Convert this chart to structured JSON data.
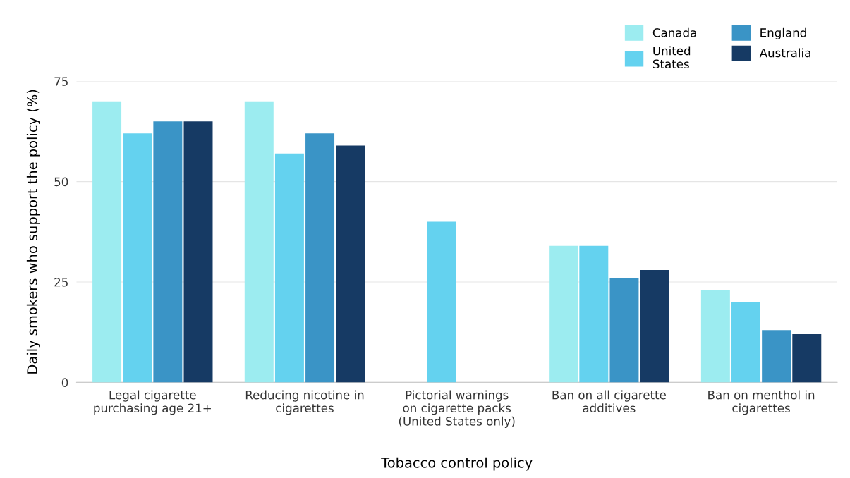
{
  "chart_data": {
    "type": "bar",
    "xlabel": "Tobacco control policy",
    "ylabel": "Daily smokers who support the policy (%)",
    "categories": [
      "Legal cigarette\npurchasing age 21+",
      "Reducing nicotine in\ncigarettes",
      "Pictorial warnings\non cigarette packs\n(United States only)",
      "Ban on all cigarette\nadditives",
      "Ban on menthol in\ncigarettes"
    ],
    "series": [
      {
        "name": "Canada",
        "color": "#9cecf0",
        "values": [
          70,
          70,
          null,
          34,
          23
        ]
      },
      {
        "name": "United\nStates",
        "color": "#64d2ef",
        "values": [
          62,
          57,
          40,
          34,
          20
        ]
      },
      {
        "name": "England",
        "color": "#3a94c6",
        "values": [
          65,
          62,
          null,
          26,
          13
        ]
      },
      {
        "name": "Australia",
        "color": "#163a64",
        "values": [
          65,
          59,
          null,
          28,
          12
        ]
      }
    ],
    "ylim": [
      0,
      75
    ],
    "yticks": [
      0,
      25,
      50,
      75
    ],
    "grid": "y",
    "legend": "top right"
  }
}
